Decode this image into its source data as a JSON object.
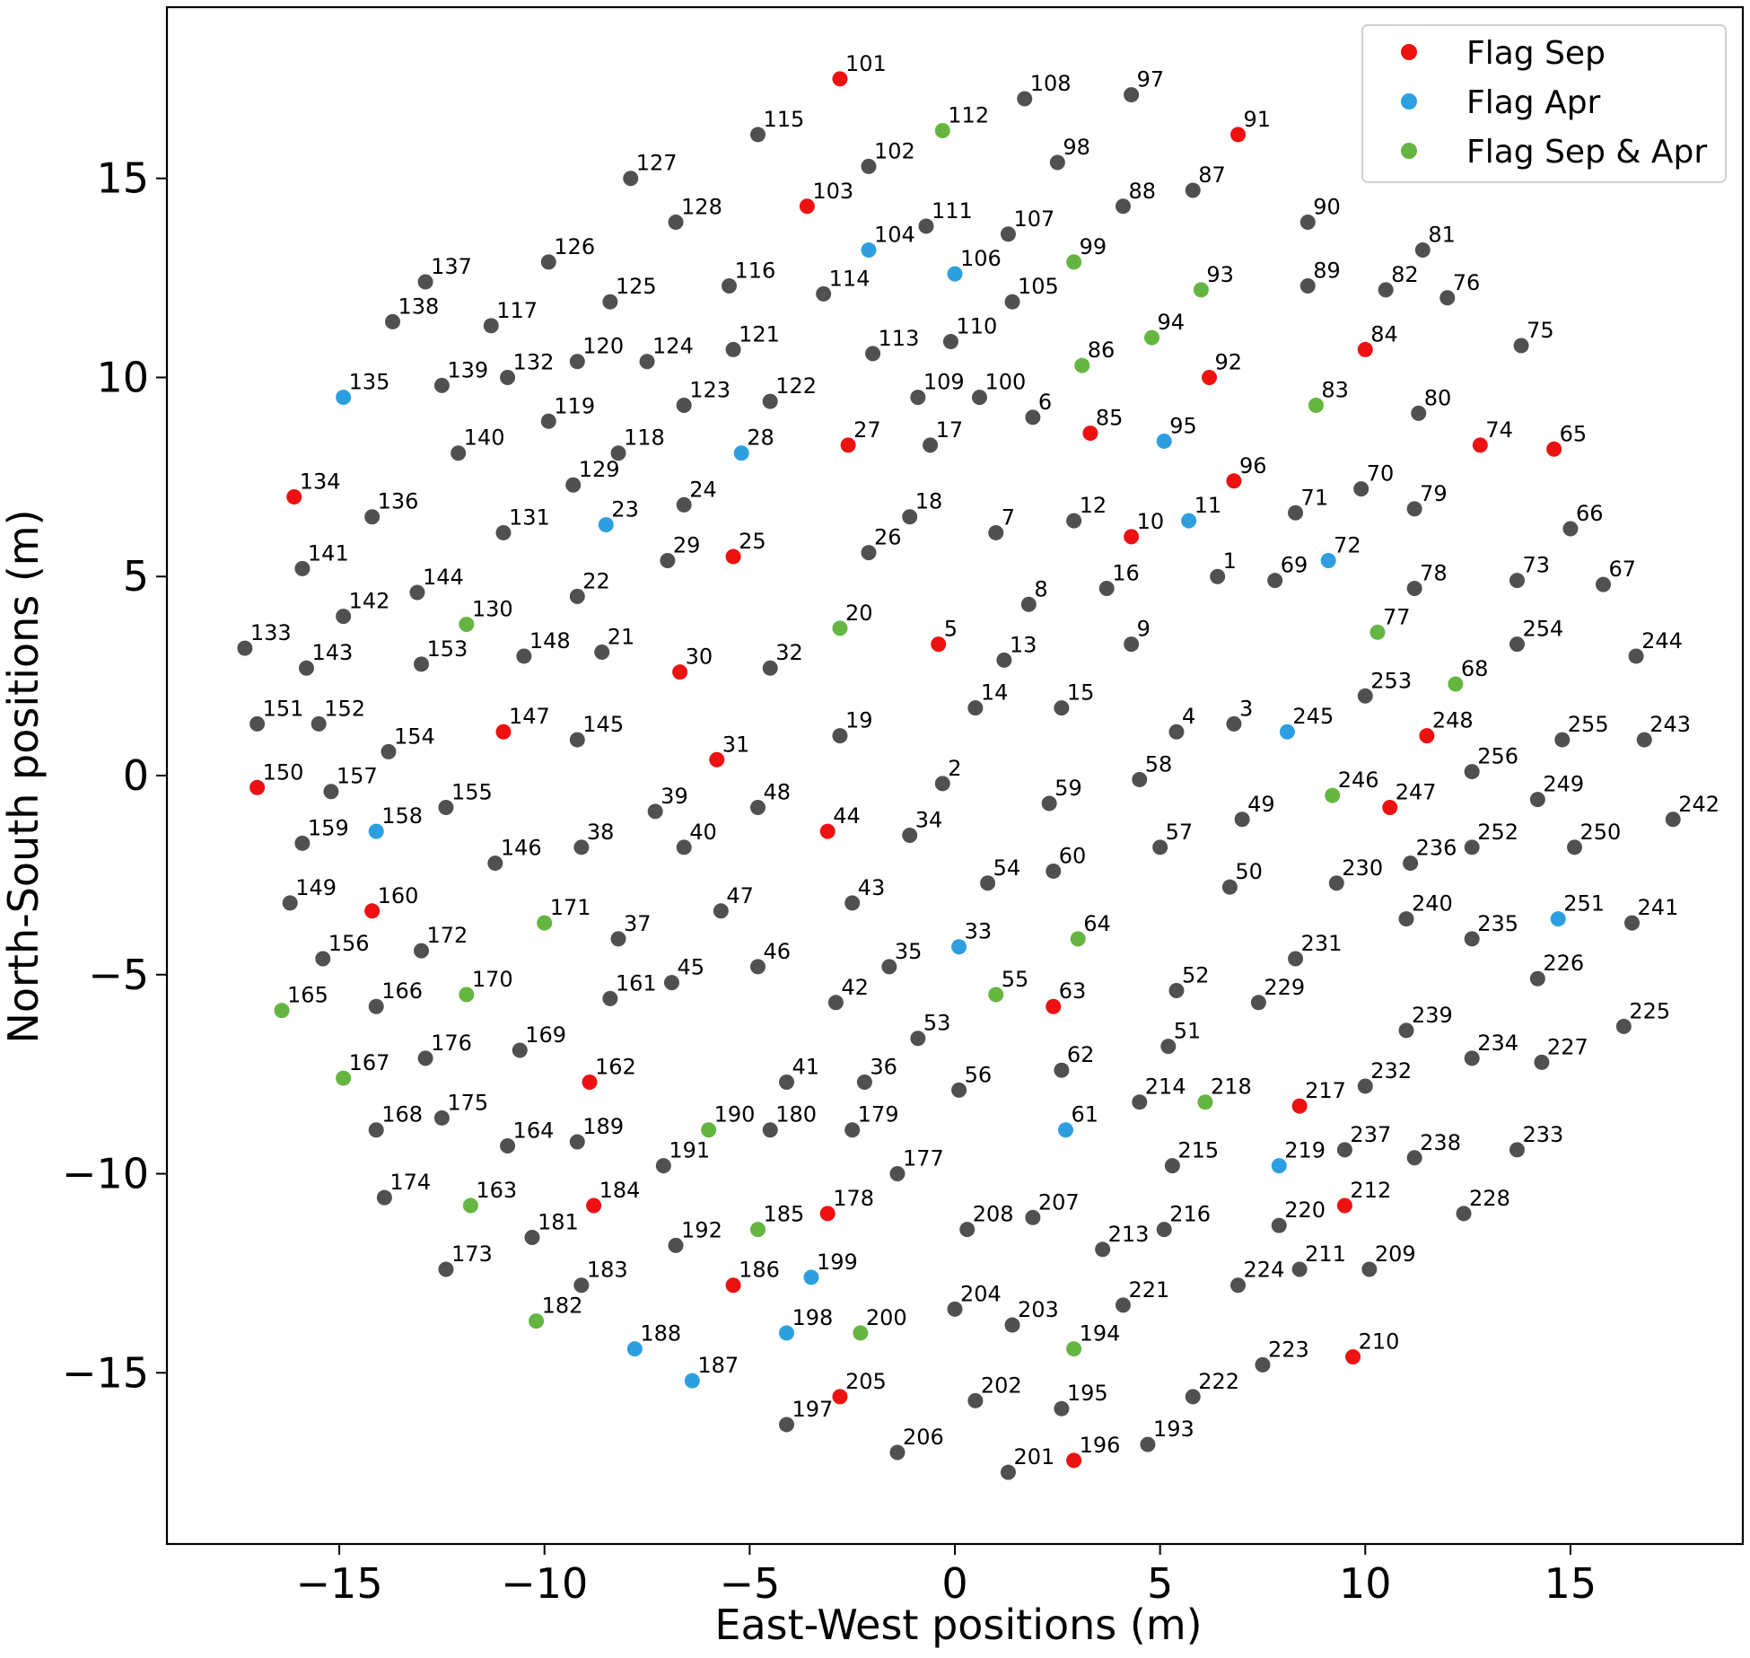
{
  "chart_data": {
    "type": "scatter",
    "xlabel": "East-West positions (m)",
    "ylabel": "North-South positions (m)",
    "xlim": [
      -19.2,
      19.2
    ],
    "ylim": [
      -19.3,
      19.3
    ],
    "xticks": [
      -15,
      -10,
      -5,
      0,
      5,
      10,
      15
    ],
    "yticks": [
      -15,
      -10,
      -5,
      0,
      5,
      10,
      15
    ],
    "xtick_labels": [
      "−15",
      "−10",
      "−5",
      "0",
      "5",
      "10",
      "15"
    ],
    "ytick_labels": [
      "−15",
      "−10",
      "−5",
      "0",
      "5",
      "10",
      "15"
    ],
    "grid": false,
    "legend_position": "top-right",
    "colors": {
      "Unflagged": "#505050",
      "Flag Sep": "#ee1111",
      "Flag Apr": "#2d9fe0",
      "Flag Sep & Apr": "#64b640"
    },
    "legend": [
      "Flag Sep",
      "Flag Apr",
      "Flag Sep & Apr"
    ],
    "points": [
      [
        "1",
        6.4,
        5.0,
        "none"
      ],
      [
        "2",
        -0.3,
        -0.2,
        "none"
      ],
      [
        "3",
        6.8,
        1.3,
        "none"
      ],
      [
        "4",
        5.4,
        1.1,
        "none"
      ],
      [
        "5",
        -0.4,
        3.3,
        "sep"
      ],
      [
        "6",
        1.9,
        9.0,
        "none"
      ],
      [
        "7",
        1.0,
        6.1,
        "none"
      ],
      [
        "8",
        1.8,
        4.3,
        "none"
      ],
      [
        "9",
        4.3,
        3.3,
        "none"
      ],
      [
        "10",
        4.3,
        6.0,
        "sep"
      ],
      [
        "11",
        5.7,
        6.4,
        "apr"
      ],
      [
        "12",
        2.9,
        6.4,
        "none"
      ],
      [
        "13",
        1.2,
        2.9,
        "none"
      ],
      [
        "14",
        0.5,
        1.7,
        "none"
      ],
      [
        "15",
        2.6,
        1.7,
        "none"
      ],
      [
        "16",
        3.7,
        4.7,
        "none"
      ],
      [
        "17",
        -0.6,
        8.3,
        "none"
      ],
      [
        "18",
        -1.1,
        6.5,
        "none"
      ],
      [
        "19",
        -2.8,
        1.0,
        "none"
      ],
      [
        "20",
        -2.8,
        3.7,
        "both"
      ],
      [
        "21",
        -8.6,
        3.1,
        "none"
      ],
      [
        "22",
        -9.2,
        4.5,
        "none"
      ],
      [
        "23",
        -8.5,
        6.3,
        "apr"
      ],
      [
        "24",
        -6.6,
        6.8,
        "none"
      ],
      [
        "25",
        -5.4,
        5.5,
        "sep"
      ],
      [
        "26",
        -2.1,
        5.6,
        "none"
      ],
      [
        "27",
        -2.6,
        8.3,
        "sep"
      ],
      [
        "28",
        -5.2,
        8.1,
        "apr"
      ],
      [
        "29",
        -7.0,
        5.4,
        "none"
      ],
      [
        "30",
        -6.7,
        2.6,
        "sep"
      ],
      [
        "31",
        -5.8,
        0.4,
        "sep"
      ],
      [
        "32",
        -4.5,
        2.7,
        "none"
      ],
      [
        "33",
        0.1,
        -4.3,
        "apr"
      ],
      [
        "34",
        -1.1,
        -1.5,
        "none"
      ],
      [
        "35",
        -1.6,
        -4.8,
        "none"
      ],
      [
        "36",
        -2.2,
        -7.7,
        "none"
      ],
      [
        "37",
        -8.2,
        -4.1,
        "none"
      ],
      [
        "38",
        -9.1,
        -1.8,
        "none"
      ],
      [
        "39",
        -7.3,
        -0.9,
        "none"
      ],
      [
        "40",
        -6.6,
        -1.8,
        "none"
      ],
      [
        "41",
        -4.1,
        -7.7,
        "none"
      ],
      [
        "42",
        -2.9,
        -5.7,
        "none"
      ],
      [
        "43",
        -2.5,
        -3.2,
        "none"
      ],
      [
        "44",
        -3.1,
        -1.4,
        "sep"
      ],
      [
        "45",
        -6.9,
        -5.2,
        "none"
      ],
      [
        "46",
        -4.8,
        -4.8,
        "none"
      ],
      [
        "47",
        -5.7,
        -3.4,
        "none"
      ],
      [
        "48",
        -4.8,
        -0.8,
        "none"
      ],
      [
        "49",
        7.0,
        -1.1,
        "none"
      ],
      [
        "50",
        6.7,
        -2.8,
        "none"
      ],
      [
        "51",
        5.2,
        -6.8,
        "none"
      ],
      [
        "52",
        5.4,
        -5.4,
        "none"
      ],
      [
        "53",
        -0.9,
        -6.6,
        "none"
      ],
      [
        "54",
        0.8,
        -2.7,
        "none"
      ],
      [
        "55",
        1.0,
        -5.5,
        "both"
      ],
      [
        "56",
        0.1,
        -7.9,
        "none"
      ],
      [
        "57",
        5.0,
        -1.8,
        "none"
      ],
      [
        "58",
        4.5,
        -0.1,
        "none"
      ],
      [
        "59",
        2.3,
        -0.7,
        "none"
      ],
      [
        "60",
        2.4,
        -2.4,
        "none"
      ],
      [
        "61",
        2.7,
        -8.9,
        "apr"
      ],
      [
        "62",
        2.6,
        -7.4,
        "none"
      ],
      [
        "63",
        2.4,
        -5.8,
        "sep"
      ],
      [
        "64",
        3.0,
        -4.1,
        "both"
      ],
      [
        "65",
        14.6,
        8.2,
        "sep"
      ],
      [
        "66",
        15.0,
        6.2,
        "none"
      ],
      [
        "67",
        15.8,
        4.8,
        "none"
      ],
      [
        "68",
        12.2,
        2.3,
        "both"
      ],
      [
        "69",
        7.8,
        4.9,
        "none"
      ],
      [
        "70",
        9.9,
        7.2,
        "none"
      ],
      [
        "71",
        8.3,
        6.6,
        "none"
      ],
      [
        "72",
        9.1,
        5.4,
        "apr"
      ],
      [
        "73",
        13.7,
        4.9,
        "none"
      ],
      [
        "74",
        12.8,
        8.3,
        "sep"
      ],
      [
        "75",
        13.8,
        10.8,
        "none"
      ],
      [
        "76",
        12.0,
        12.0,
        "none"
      ],
      [
        "77",
        10.3,
        3.6,
        "both"
      ],
      [
        "78",
        11.2,
        4.7,
        "none"
      ],
      [
        "79",
        11.2,
        6.7,
        "none"
      ],
      [
        "80",
        11.3,
        9.1,
        "none"
      ],
      [
        "81",
        11.4,
        13.2,
        "none"
      ],
      [
        "82",
        10.5,
        12.2,
        "none"
      ],
      [
        "83",
        8.8,
        9.3,
        "both"
      ],
      [
        "84",
        10.0,
        10.7,
        "sep"
      ],
      [
        "85",
        3.3,
        8.6,
        "sep"
      ],
      [
        "86",
        3.1,
        10.3,
        "both"
      ],
      [
        "87",
        5.8,
        14.7,
        "none"
      ],
      [
        "88",
        4.1,
        14.3,
        "none"
      ],
      [
        "89",
        8.6,
        12.3,
        "none"
      ],
      [
        "90",
        8.6,
        13.9,
        "none"
      ],
      [
        "91",
        6.9,
        16.1,
        "sep"
      ],
      [
        "92",
        6.2,
        10.0,
        "sep"
      ],
      [
        "93",
        6.0,
        12.2,
        "both"
      ],
      [
        "94",
        4.8,
        11.0,
        "both"
      ],
      [
        "95",
        5.1,
        8.4,
        "apr"
      ],
      [
        "96",
        6.8,
        7.4,
        "sep"
      ],
      [
        "97",
        4.3,
        17.1,
        "none"
      ],
      [
        "98",
        2.5,
        15.4,
        "none"
      ],
      [
        "99",
        2.9,
        12.9,
        "both"
      ],
      [
        "100",
        0.6,
        9.5,
        "none"
      ],
      [
        "101",
        -2.8,
        17.5,
        "sep"
      ],
      [
        "102",
        -2.1,
        15.3,
        "none"
      ],
      [
        "103",
        -3.6,
        14.3,
        "sep"
      ],
      [
        "104",
        -2.1,
        13.2,
        "apr"
      ],
      [
        "105",
        1.4,
        11.9,
        "none"
      ],
      [
        "106",
        0.0,
        12.6,
        "apr"
      ],
      [
        "107",
        1.3,
        13.6,
        "none"
      ],
      [
        "108",
        1.7,
        17.0,
        "none"
      ],
      [
        "109",
        -0.9,
        9.5,
        "none"
      ],
      [
        "110",
        -0.1,
        10.9,
        "none"
      ],
      [
        "111",
        -0.7,
        13.8,
        "none"
      ],
      [
        "112",
        -0.3,
        16.2,
        "both"
      ],
      [
        "113",
        -2.0,
        10.6,
        "none"
      ],
      [
        "114",
        -3.2,
        12.1,
        "none"
      ],
      [
        "115",
        -4.8,
        16.1,
        "none"
      ],
      [
        "116",
        -5.5,
        12.3,
        "none"
      ],
      [
        "117",
        -11.3,
        11.3,
        "none"
      ],
      [
        "118",
        -8.2,
        8.1,
        "none"
      ],
      [
        "119",
        -9.9,
        8.9,
        "none"
      ],
      [
        "120",
        -9.2,
        10.4,
        "none"
      ],
      [
        "121",
        -5.4,
        10.7,
        "none"
      ],
      [
        "122",
        -4.5,
        9.4,
        "none"
      ],
      [
        "123",
        -6.6,
        9.3,
        "none"
      ],
      [
        "124",
        -7.5,
        10.4,
        "none"
      ],
      [
        "125",
        -8.4,
        11.9,
        "none"
      ],
      [
        "126",
        -9.9,
        12.9,
        "none"
      ],
      [
        "127",
        -7.9,
        15.0,
        "none"
      ],
      [
        "128",
        -6.8,
        13.9,
        "none"
      ],
      [
        "129",
        -9.3,
        7.3,
        "none"
      ],
      [
        "130",
        -11.9,
        3.8,
        "both"
      ],
      [
        "131",
        -11.0,
        6.1,
        "none"
      ],
      [
        "132",
        -10.9,
        10.0,
        "none"
      ],
      [
        "133",
        -17.3,
        3.2,
        "none"
      ],
      [
        "134",
        -16.1,
        7.0,
        "sep"
      ],
      [
        "135",
        -14.9,
        9.5,
        "apr"
      ],
      [
        "136",
        -14.2,
        6.5,
        "none"
      ],
      [
        "137",
        -12.9,
        12.4,
        "none"
      ],
      [
        "138",
        -13.7,
        11.4,
        "none"
      ],
      [
        "139",
        -12.5,
        9.8,
        "none"
      ],
      [
        "140",
        -12.1,
        8.1,
        "none"
      ],
      [
        "141",
        -15.9,
        5.2,
        "none"
      ],
      [
        "142",
        -14.9,
        4.0,
        "none"
      ],
      [
        "143",
        -15.8,
        2.7,
        "none"
      ],
      [
        "144",
        -13.1,
        4.6,
        "none"
      ],
      [
        "145",
        -9.2,
        0.9,
        "none"
      ],
      [
        "146",
        -11.2,
        -2.2,
        "none"
      ],
      [
        "147",
        -11.0,
        1.1,
        "sep"
      ],
      [
        "148",
        -10.5,
        3.0,
        "none"
      ],
      [
        "149",
        -16.2,
        -3.2,
        "none"
      ],
      [
        "150",
        -17.0,
        -0.3,
        "sep"
      ],
      [
        "151",
        -17.0,
        1.3,
        "none"
      ],
      [
        "152",
        -15.5,
        1.3,
        "none"
      ],
      [
        "153",
        -13.0,
        2.8,
        "none"
      ],
      [
        "154",
        -13.8,
        0.6,
        "none"
      ],
      [
        "155",
        -12.4,
        -0.8,
        "none"
      ],
      [
        "156",
        -15.4,
        -4.6,
        "none"
      ],
      [
        "157",
        -15.2,
        -0.4,
        "none"
      ],
      [
        "158",
        -14.1,
        -1.4,
        "apr"
      ],
      [
        "159",
        -15.9,
        -1.7,
        "none"
      ],
      [
        "160",
        -14.2,
        -3.4,
        "sep"
      ],
      [
        "161",
        -8.4,
        -5.6,
        "none"
      ],
      [
        "162",
        -8.9,
        -7.7,
        "sep"
      ],
      [
        "163",
        -11.8,
        -10.8,
        "both"
      ],
      [
        "164",
        -10.9,
        -9.3,
        "none"
      ],
      [
        "165",
        -16.4,
        -5.9,
        "both"
      ],
      [
        "166",
        -14.1,
        -5.8,
        "none"
      ],
      [
        "167",
        -14.9,
        -7.6,
        "both"
      ],
      [
        "168",
        -14.1,
        -8.9,
        "none"
      ],
      [
        "169",
        -10.6,
        -6.9,
        "none"
      ],
      [
        "170",
        -11.9,
        -5.5,
        "both"
      ],
      [
        "171",
        -10.0,
        -3.7,
        "both"
      ],
      [
        "172",
        -13.0,
        -4.4,
        "none"
      ],
      [
        "173",
        -12.4,
        -12.4,
        "none"
      ],
      [
        "174",
        -13.9,
        -10.6,
        "none"
      ],
      [
        "175",
        -12.5,
        -8.6,
        "none"
      ],
      [
        "176",
        -12.9,
        -7.1,
        "none"
      ],
      [
        "177",
        -1.4,
        -10.0,
        "none"
      ],
      [
        "178",
        -3.1,
        -11.0,
        "sep"
      ],
      [
        "179",
        -2.5,
        -8.9,
        "none"
      ],
      [
        "180",
        -4.5,
        -8.9,
        "none"
      ],
      [
        "181",
        -10.3,
        -11.6,
        "none"
      ],
      [
        "182",
        -10.2,
        -13.7,
        "both"
      ],
      [
        "183",
        -9.1,
        -12.8,
        "none"
      ],
      [
        "184",
        -8.8,
        -10.8,
        "sep"
      ],
      [
        "185",
        -4.8,
        -11.4,
        "both"
      ],
      [
        "186",
        -5.4,
        -12.8,
        "sep"
      ],
      [
        "187",
        -6.4,
        -15.2,
        "apr"
      ],
      [
        "188",
        -7.8,
        -14.4,
        "apr"
      ],
      [
        "189",
        -9.2,
        -9.2,
        "none"
      ],
      [
        "190",
        -6.0,
        -8.9,
        "both"
      ],
      [
        "191",
        -7.1,
        -9.8,
        "none"
      ],
      [
        "192",
        -6.8,
        -11.8,
        "none"
      ],
      [
        "193",
        4.7,
        -16.8,
        "none"
      ],
      [
        "194",
        2.9,
        -14.4,
        "both"
      ],
      [
        "195",
        2.6,
        -15.9,
        "none"
      ],
      [
        "196",
        2.9,
        -17.2,
        "sep"
      ],
      [
        "197",
        -4.1,
        -16.3,
        "none"
      ],
      [
        "198",
        -4.1,
        -14.0,
        "apr"
      ],
      [
        "199",
        -3.5,
        -12.6,
        "apr"
      ],
      [
        "200",
        -2.3,
        -14.0,
        "both"
      ],
      [
        "201",
        1.3,
        -17.5,
        "none"
      ],
      [
        "202",
        0.5,
        -15.7,
        "none"
      ],
      [
        "203",
        1.4,
        -13.8,
        "none"
      ],
      [
        "204",
        0.0,
        -13.4,
        "none"
      ],
      [
        "205",
        -2.8,
        -15.6,
        "sep"
      ],
      [
        "206",
        -1.4,
        -17.0,
        "none"
      ],
      [
        "207",
        1.9,
        -11.1,
        "none"
      ],
      [
        "208",
        0.3,
        -11.4,
        "none"
      ],
      [
        "209",
        10.1,
        -12.4,
        "none"
      ],
      [
        "210",
        9.7,
        -14.6,
        "sep"
      ],
      [
        "211",
        8.4,
        -12.4,
        "none"
      ],
      [
        "212",
        9.5,
        -10.8,
        "sep"
      ],
      [
        "213",
        3.6,
        -11.9,
        "none"
      ],
      [
        "214",
        4.5,
        -8.2,
        "none"
      ],
      [
        "215",
        5.3,
        -9.8,
        "none"
      ],
      [
        "216",
        5.1,
        -11.4,
        "none"
      ],
      [
        "217",
        8.4,
        -8.3,
        "sep"
      ],
      [
        "218",
        6.1,
        -8.2,
        "both"
      ],
      [
        "219",
        7.9,
        -9.8,
        "apr"
      ],
      [
        "220",
        7.9,
        -11.3,
        "none"
      ],
      [
        "221",
        4.1,
        -13.3,
        "none"
      ],
      [
        "222",
        5.8,
        -15.6,
        "none"
      ],
      [
        "223",
        7.5,
        -14.8,
        "none"
      ],
      [
        "224",
        6.9,
        -12.8,
        "none"
      ],
      [
        "225",
        16.3,
        -6.3,
        "none"
      ],
      [
        "226",
        14.2,
        -5.1,
        "none"
      ],
      [
        "227",
        14.3,
        -7.2,
        "none"
      ],
      [
        "228",
        12.4,
        -11.0,
        "none"
      ],
      [
        "229",
        7.4,
        -5.7,
        "none"
      ],
      [
        "230",
        9.3,
        -2.7,
        "none"
      ],
      [
        "231",
        8.3,
        -4.6,
        "none"
      ],
      [
        "232",
        10.0,
        -7.8,
        "none"
      ],
      [
        "233",
        13.7,
        -9.4,
        "none"
      ],
      [
        "234",
        12.6,
        -7.1,
        "none"
      ],
      [
        "235",
        12.6,
        -4.1,
        "none"
      ],
      [
        "236",
        11.1,
        -2.2,
        "none"
      ],
      [
        "237",
        9.5,
        -9.4,
        "none"
      ],
      [
        "238",
        11.2,
        -9.6,
        "none"
      ],
      [
        "239",
        11.0,
        -6.4,
        "none"
      ],
      [
        "240",
        11.0,
        -3.6,
        "none"
      ],
      [
        "241",
        16.5,
        -3.7,
        "none"
      ],
      [
        "242",
        17.5,
        -1.1,
        "none"
      ],
      [
        "243",
        16.8,
        0.9,
        "none"
      ],
      [
        "244",
        16.6,
        3.0,
        "none"
      ],
      [
        "245",
        8.1,
        1.1,
        "apr"
      ],
      [
        "246",
        9.2,
        -0.5,
        "both"
      ],
      [
        "247",
        10.6,
        -0.8,
        "sep"
      ],
      [
        "248",
        11.5,
        1.0,
        "sep"
      ],
      [
        "249",
        14.2,
        -0.6,
        "none"
      ],
      [
        "250",
        15.1,
        -1.8,
        "none"
      ],
      [
        "251",
        14.7,
        -3.6,
        "apr"
      ],
      [
        "252",
        12.6,
        -1.8,
        "none"
      ],
      [
        "253",
        10.0,
        2.0,
        "none"
      ],
      [
        "254",
        13.7,
        3.3,
        "none"
      ],
      [
        "255",
        14.8,
        0.9,
        "none"
      ],
      [
        "256",
        12.6,
        0.1,
        "none"
      ]
    ]
  }
}
